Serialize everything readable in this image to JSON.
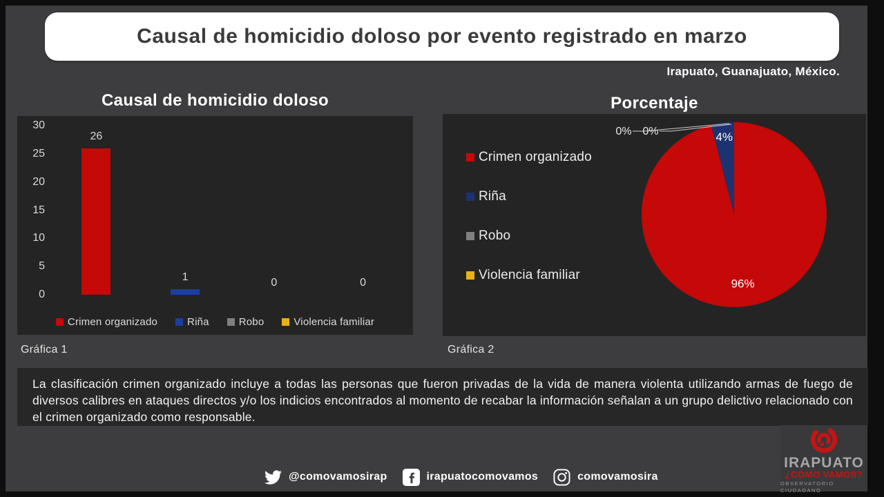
{
  "page": {
    "title": "Causal de homicidio doloso por evento registrado en marzo",
    "location": "Irapuato, Guanajuato, México."
  },
  "colors": {
    "background": "#3d3d3f",
    "frame": "#0e0e0f",
    "panel": "#242425",
    "banner": "#ffffff",
    "banner_text": "#3b3b3d",
    "red": "#c50808",
    "navy_bar": "#1b3fa0",
    "navy_pie": "#1d3270",
    "gray": "#808080",
    "gold": "#eab112",
    "light_text": "#d9d9d9",
    "logo_red": "#c51414"
  },
  "chart_data": [
    {
      "type": "bar",
      "title": "Causal de homicidio doloso",
      "caption": "Gráfica 1",
      "categories": [
        "Crimen organizado",
        "Riña",
        "Robo",
        "Violencia familiar"
      ],
      "values": [
        26,
        1,
        0,
        0
      ],
      "bar_colors": [
        "#c50808",
        "#1b3fa0",
        "#808080",
        "#eab112"
      ],
      "yticks": [
        30,
        25,
        20,
        15,
        10,
        5,
        0
      ],
      "ylim": [
        0,
        30
      ],
      "grid": false,
      "legend_position": "bottom"
    },
    {
      "type": "pie",
      "title": "Porcentaje",
      "caption": "Gráfica 2",
      "categories": [
        "Crimen organizado",
        "Riña",
        "Robo",
        "Violencia familiar"
      ],
      "values": [
        96,
        4,
        0,
        0
      ],
      "labels": [
        "96%",
        "4%",
        "0%",
        "0%"
      ],
      "slice_colors": [
        "#c50808",
        "#1d3270",
        "#808080",
        "#eab112"
      ],
      "start_angle": "12 o'clock",
      "direction": "clockwise",
      "legend_position": "left"
    }
  ],
  "note": "La clasificación crimen organizado incluye a todas las personas que fueron privadas de la vida de manera violenta utilizando armas de fuego de diversos calibres en ataques directos y/o los indicios encontrados al momento de recabar la información señalan a un grupo delictivo relacionado con el crimen organizado como responsable.",
  "footer": {
    "twitter_handle": "@comovamosirap",
    "facebook_handle": "irapuatocomovamos",
    "instagram_handle": "comovamosira"
  },
  "logo": {
    "name": "IRAPUATO",
    "tagline": "¿CÓMO VAMOS?",
    "subtitle": "OBSERVATORIO CIUDADANO"
  }
}
